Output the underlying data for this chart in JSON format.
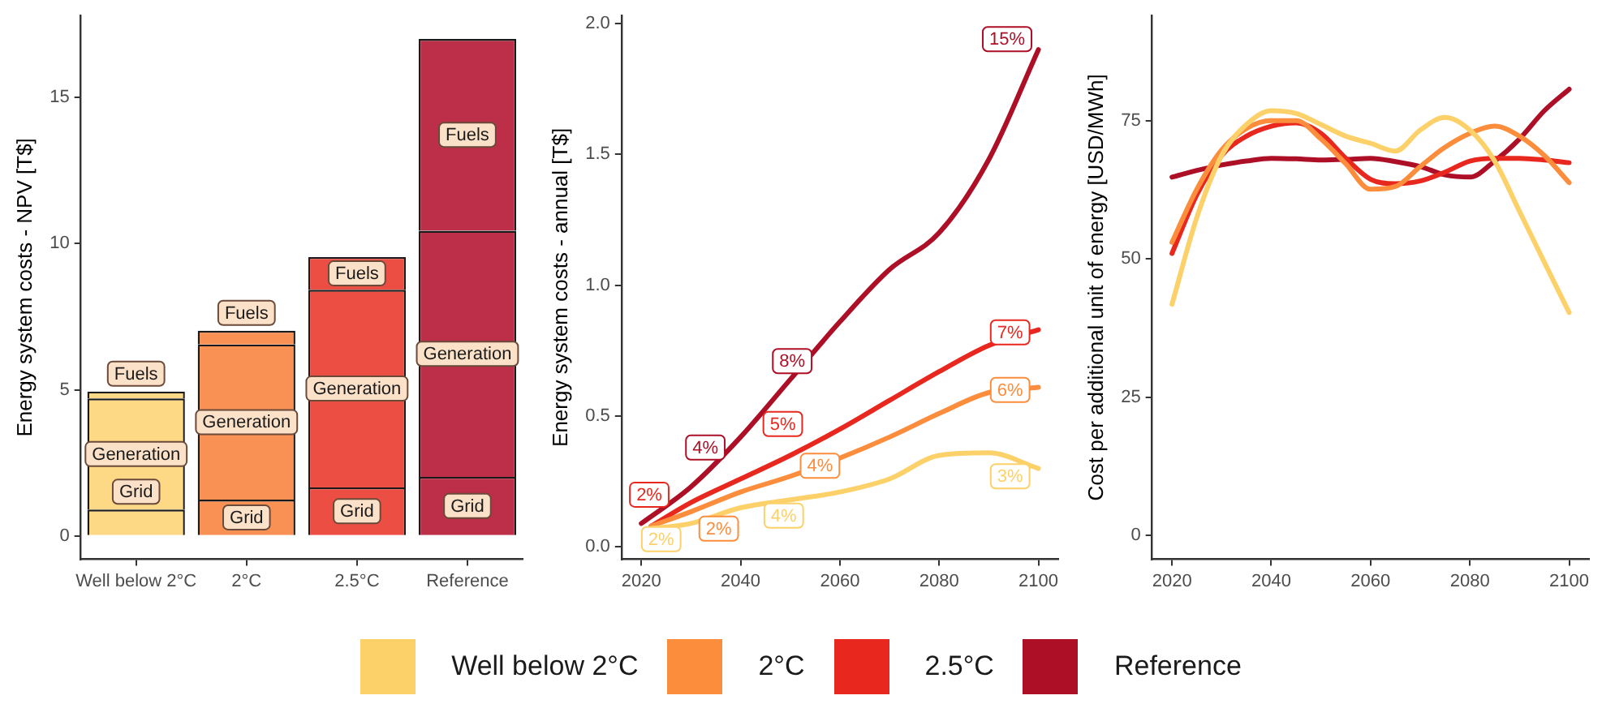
{
  "chart_data": [
    {
      "type": "bar",
      "ylabel": "Energy system costs - NPV [T$]",
      "categories": [
        "Well below 2°C",
        "2°C",
        "2.5°C",
        "Reference"
      ],
      "stacked": true,
      "ylim": [
        -0.8,
        17.8
      ],
      "yticks": [
        0,
        5,
        10,
        15
      ],
      "grid": false,
      "series": [
        {
          "name": "Grid",
          "colors": [
            "#fdd985",
            "#f99155",
            "#ec4e44",
            "#bd2f48"
          ],
          "values": [
            0.9,
            1.24,
            1.66,
            2.02
          ]
        },
        {
          "name": "Generation",
          "colors": [
            "#fdd985",
            "#f99155",
            "#ec4e44",
            "#bd2f48"
          ],
          "values": [
            3.8,
            5.31,
            6.76,
            8.42
          ]
        },
        {
          "name": "Fuels",
          "colors": [
            "#fdd985",
            "#f99155",
            "#ec4e44",
            "#bd2f48"
          ],
          "values": [
            0.24,
            0.47,
            1.12,
            6.56
          ]
        }
      ]
    },
    {
      "type": "line",
      "ylabel": "Energy system costs - annual [T$]",
      "xlim": [
        2016,
        2104
      ],
      "xticks": [
        2020,
        2040,
        2060,
        2080,
        2100
      ],
      "ylim": [
        -0.047,
        2.03
      ],
      "yticks": [
        {
          "value": 0,
          "label": "0.0"
        },
        0.5,
        {
          "value": 1,
          "label": "1.0"
        },
        1.5,
        {
          "value": 2,
          "label": "2.0"
        }
      ],
      "grid": false,
      "legend": "bottom",
      "series": [
        {
          "name": "Well below 2°C",
          "color": "#fdd16a",
          "x": [
            2022,
            2030,
            2040,
            2050,
            2060,
            2070,
            2080,
            2090,
            2100
          ],
          "values": [
            0.07,
            0.09,
            0.15,
            0.18,
            0.21,
            0.26,
            0.35,
            0.36,
            0.3
          ]
        },
        {
          "name": "2°C",
          "color": "#fc8d3c",
          "x": [
            2022,
            2030,
            2040,
            2050,
            2060,
            2070,
            2080,
            2090,
            2100
          ],
          "values": [
            0.08,
            0.135,
            0.21,
            0.27,
            0.34,
            0.42,
            0.51,
            0.59,
            0.61
          ]
        },
        {
          "name": "2.5°C",
          "color": "#e8281e",
          "x": [
            2022,
            2030,
            2040,
            2050,
            2060,
            2070,
            2080,
            2090,
            2100
          ],
          "values": [
            0.08,
            0.17,
            0.26,
            0.35,
            0.45,
            0.56,
            0.67,
            0.77,
            0.83
          ]
        },
        {
          "name": "Reference",
          "color": "#ad0f26",
          "x": [
            2020,
            2030,
            2040,
            2050,
            2060,
            2070,
            2080,
            2090,
            2100
          ],
          "values": [
            0.09,
            0.23,
            0.42,
            0.64,
            0.86,
            1.06,
            1.2,
            1.48,
            1.9
          ]
        }
      ],
      "annotations": [
        {
          "text": "2%",
          "x": 2024,
          "y": 0.03
        },
        {
          "text": "4%",
          "x": 2048.7,
          "y": 0.12
        },
        {
          "text": "3%",
          "x": 2094.3,
          "y": 0.27
        },
        {
          "text": "2%",
          "x": 2035.6,
          "y": 0.07
        },
        {
          "text": "4%",
          "x": 2056,
          "y": 0.31
        },
        {
          "text": "6%",
          "x": 2094.3,
          "y": 0.6
        },
        {
          "text": "2%",
          "x": 2021.6,
          "y": 0.2
        },
        {
          "text": "5%",
          "x": 2048.5,
          "y": 0.47
        },
        {
          "text": "7%",
          "x": 2094.3,
          "y": 0.82
        },
        {
          "text": "4%",
          "x": 2032.9,
          "y": 0.38
        },
        {
          "text": "8%",
          "x": 2050.4,
          "y": 0.71
        },
        {
          "text": "15%",
          "x": 2093.7,
          "y": 1.94
        }
      ]
    },
    {
      "type": "line",
      "ylabel": "Cost per additional unit of energy [USD/MWh]",
      "xlim": [
        2016,
        2104
      ],
      "xticks": [
        2020,
        2040,
        2060,
        2080,
        2100
      ],
      "ylim": [
        -4.3,
        94
      ],
      "yticks": [
        0,
        25,
        50,
        75
      ],
      "grid": false,
      "x": [
        2020,
        2025,
        2030,
        2035,
        2040,
        2045,
        2050,
        2055,
        2060,
        2065,
        2070,
        2075,
        2080,
        2085,
        2090,
        2095,
        2100
      ],
      "series": [
        {
          "color": "#fdd16a",
          "values": [
            41.8,
            57.5,
            68.7,
            74.3,
            76.8,
            76.3,
            74.3,
            72.2,
            70.9,
            69.5,
            73.3,
            75.6,
            73.3,
            67.7,
            58.6,
            49.4,
            40.3
          ]
        },
        {
          "color": "#fc8d3c",
          "values": [
            53,
            62.6,
            69.7,
            73.6,
            75,
            75,
            71.7,
            67.2,
            62.6,
            63.1,
            66.7,
            70.2,
            72.7,
            74,
            72.2,
            68.7,
            63.8
          ]
        },
        {
          "color": "#e8281e",
          "values": [
            51,
            61.6,
            68.7,
            72.2,
            74,
            74.6,
            72.7,
            68.2,
            64.4,
            63.6,
            64.1,
            65.7,
            67.7,
            68.2,
            68.2,
            67.9,
            67.4
          ]
        },
        {
          "color": "#ad0f26",
          "values": [
            64.8,
            66,
            67,
            67.7,
            68.2,
            68.1,
            67.9,
            68,
            68.2,
            67.6,
            66.7,
            65.2,
            64.8,
            67.7,
            71.7,
            76.8,
            80.7
          ]
        }
      ]
    }
  ]
}
